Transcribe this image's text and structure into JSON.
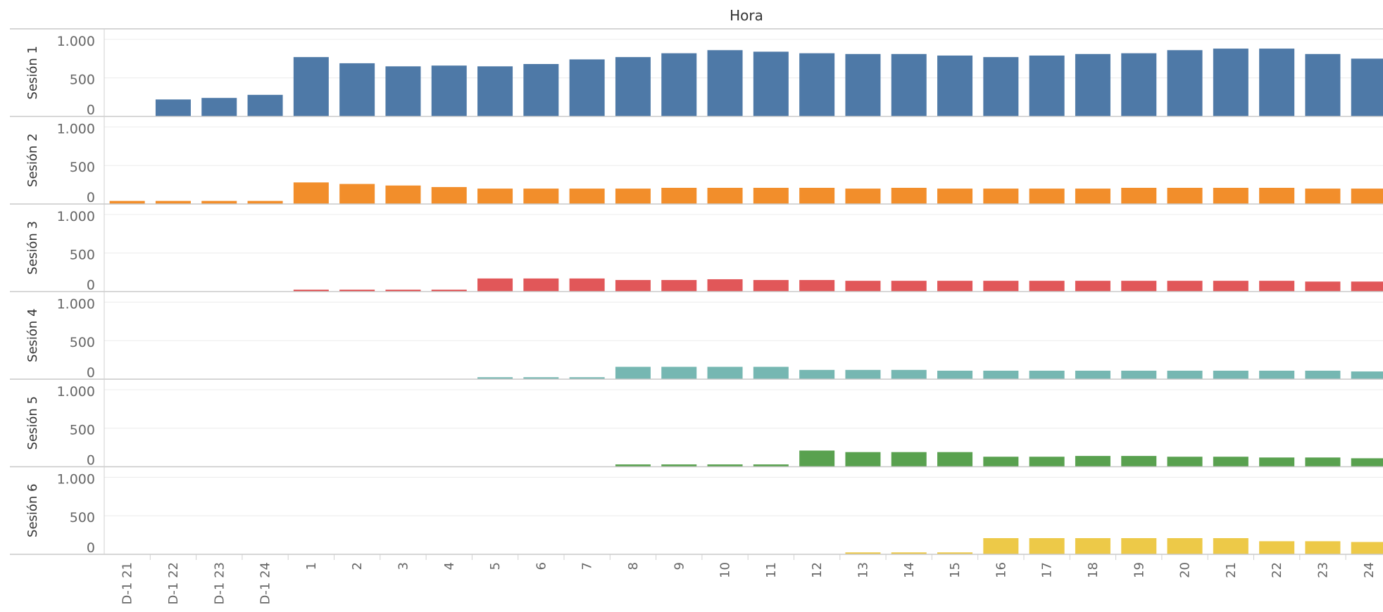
{
  "chart_data": {
    "type": "bar",
    "title": "",
    "column_header": "Hora",
    "xlabel": "",
    "ylabel": "",
    "categories": [
      "D-1 21",
      "D-1 22",
      "D-1 23",
      "D-1 24",
      "1",
      "2",
      "3",
      "4",
      "5",
      "6",
      "7",
      "8",
      "9",
      "10",
      "11",
      "12",
      "13",
      "14",
      "15",
      "16",
      "17",
      "18",
      "19",
      "20",
      "21",
      "22",
      "23",
      "24"
    ],
    "ylim": [
      0,
      1100
    ],
    "yticks": [
      0,
      500,
      1000
    ],
    "ytick_labels": [
      "0",
      "500",
      "1.000"
    ],
    "grid": true,
    "legend": "none",
    "series": [
      {
        "name": "Sesión 1",
        "color": "#4e79a7",
        "values": [
          0,
          220,
          240,
          280,
          770,
          690,
          650,
          660,
          650,
          680,
          740,
          770,
          820,
          860,
          840,
          820,
          810,
          810,
          790,
          770,
          790,
          810,
          820,
          860,
          880,
          880,
          810,
          750
        ]
      },
      {
        "name": "Sesión 2",
        "color": "#f28e2b",
        "values": [
          40,
          40,
          40,
          40,
          280,
          260,
          240,
          220,
          200,
          200,
          200,
          200,
          210,
          210,
          210,
          210,
          200,
          210,
          200,
          200,
          200,
          200,
          210,
          210,
          210,
          210,
          200,
          200
        ]
      },
      {
        "name": "Sesión 3",
        "color": "#e15759",
        "values": [
          0,
          0,
          0,
          0,
          25,
          25,
          25,
          25,
          170,
          170,
          170,
          150,
          150,
          160,
          150,
          150,
          140,
          140,
          140,
          140,
          140,
          140,
          140,
          140,
          140,
          140,
          130,
          130
        ]
      },
      {
        "name": "Sesión 4",
        "color": "#76b7b2",
        "values": [
          0,
          0,
          0,
          0,
          0,
          0,
          0,
          0,
          25,
          25,
          25,
          160,
          160,
          160,
          160,
          120,
          120,
          120,
          110,
          110,
          110,
          110,
          110,
          110,
          110,
          110,
          110,
          100
        ]
      },
      {
        "name": "Sesión 5",
        "color": "#59a14f",
        "values": [
          0,
          0,
          0,
          0,
          0,
          0,
          0,
          0,
          0,
          0,
          0,
          30,
          30,
          30,
          30,
          210,
          190,
          190,
          190,
          130,
          130,
          140,
          140,
          130,
          130,
          120,
          120,
          110
        ]
      },
      {
        "name": "Sesión 6",
        "color": "#edc948",
        "values": [
          0,
          0,
          0,
          0,
          0,
          0,
          0,
          0,
          0,
          0,
          0,
          0,
          0,
          0,
          0,
          0,
          25,
          25,
          25,
          210,
          210,
          210,
          210,
          210,
          210,
          170,
          170,
          160
        ]
      }
    ]
  }
}
